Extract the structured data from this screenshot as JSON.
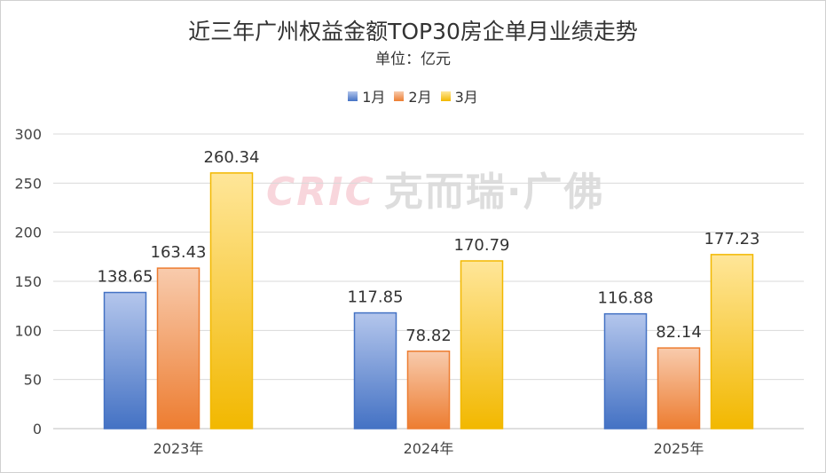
{
  "chart_data": {
    "type": "bar",
    "title": "近三年广州权益金额TOP30房企单月业绩走势",
    "subtitle": "单位：亿元",
    "categories": [
      "2023年",
      "2024年",
      "2025年"
    ],
    "series": [
      {
        "name": "1月",
        "values": [
          138.65,
          117.85,
          116.88
        ],
        "color": "#4472c4",
        "light": "#b4c6ec"
      },
      {
        "name": "2月",
        "values": [
          163.43,
          78.82,
          82.14
        ],
        "color": "#ed7d31",
        "light": "#f8cbad"
      },
      {
        "name": "3月",
        "values": [
          260.34,
          170.79,
          177.23
        ],
        "color": "#f2b800",
        "light": "#ffe699"
      }
    ],
    "value_labels": [
      [
        "138.65",
        "117.85",
        "116.88"
      ],
      [
        "163.43",
        "78.82",
        "82.14"
      ],
      [
        "260.34",
        "170.79",
        "177.23"
      ]
    ],
    "ylim": [
      0,
      300
    ],
    "yticks": [
      0,
      50,
      100,
      150,
      200,
      250,
      300
    ],
    "grid": true,
    "legend_position": "top"
  },
  "watermark": {
    "latin": "CRIC",
    "cn": "克而瑞·广佛"
  }
}
